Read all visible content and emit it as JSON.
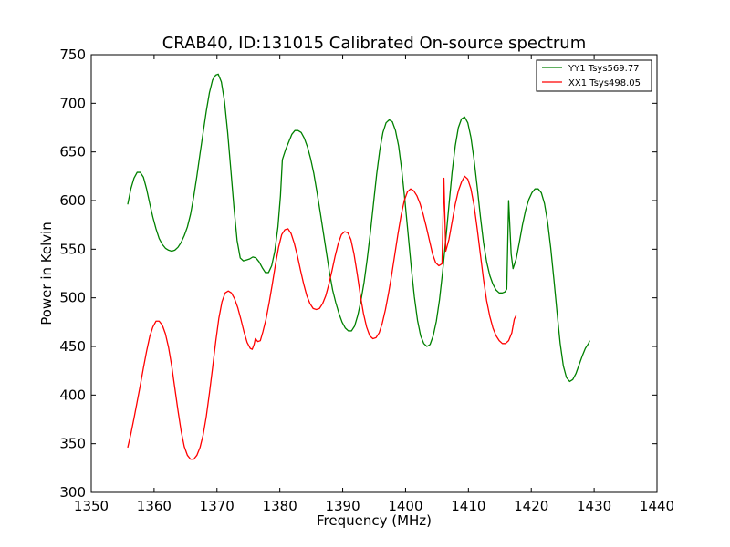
{
  "chart_data": {
    "type": "line",
    "title": "CRAB40, ID:131015 Calibrated On-source spectrum",
    "xlabel": "Frequency (MHz)",
    "ylabel": "Power in Kelvin",
    "xlim": [
      1350,
      1440
    ],
    "ylim": [
      300,
      750
    ],
    "xticks": [
      1350,
      1360,
      1370,
      1380,
      1390,
      1400,
      1410,
      1420,
      1430,
      1440
    ],
    "yticks": [
      300,
      350,
      400,
      450,
      500,
      550,
      600,
      650,
      700,
      750
    ],
    "grid": false,
    "legend_position": "top-right",
    "series": [
      {
        "name": "YY1 Tsys569.77",
        "color": "#008000",
        "points": [
          [
            1355.8,
            596
          ],
          [
            1356.3,
            612
          ],
          [
            1356.8,
            623
          ],
          [
            1357.3,
            629
          ],
          [
            1357.8,
            629
          ],
          [
            1358.3,
            624
          ],
          [
            1358.8,
            612
          ],
          [
            1359.3,
            597
          ],
          [
            1359.8,
            583
          ],
          [
            1360.3,
            571
          ],
          [
            1360.8,
            561
          ],
          [
            1361.3,
            555
          ],
          [
            1361.8,
            551
          ],
          [
            1362.3,
            549
          ],
          [
            1362.8,
            548
          ],
          [
            1363.3,
            549
          ],
          [
            1363.8,
            552
          ],
          [
            1364.3,
            557
          ],
          [
            1364.8,
            564
          ],
          [
            1365.3,
            573
          ],
          [
            1365.8,
            586
          ],
          [
            1366.3,
            604
          ],
          [
            1366.8,
            625
          ],
          [
            1367.3,
            648
          ],
          [
            1367.8,
            670
          ],
          [
            1368.3,
            692
          ],
          [
            1368.8,
            711
          ],
          [
            1369.3,
            724
          ],
          [
            1369.8,
            729
          ],
          [
            1370.2,
            730
          ],
          [
            1370.7,
            722
          ],
          [
            1371.2,
            702
          ],
          [
            1371.7,
            670
          ],
          [
            1372.2,
            632
          ],
          [
            1372.7,
            593
          ],
          [
            1373.2,
            559
          ],
          [
            1373.7,
            541
          ],
          [
            1374.2,
            538
          ],
          [
            1374.7,
            539
          ],
          [
            1375.2,
            540
          ],
          [
            1375.7,
            542
          ],
          [
            1376.2,
            541
          ],
          [
            1376.7,
            537
          ],
          [
            1377.2,
            531
          ],
          [
            1377.7,
            526
          ],
          [
            1378.2,
            526
          ],
          [
            1378.7,
            533
          ],
          [
            1379.2,
            548
          ],
          [
            1379.7,
            573
          ],
          [
            1380.1,
            605
          ],
          [
            1380.4,
            642
          ],
          [
            1380.9,
            652
          ],
          [
            1381.4,
            660
          ],
          [
            1381.9,
            668
          ],
          [
            1382.4,
            672
          ],
          [
            1382.9,
            672
          ],
          [
            1383.4,
            670
          ],
          [
            1383.9,
            664
          ],
          [
            1384.4,
            655
          ],
          [
            1384.9,
            643
          ],
          [
            1385.4,
            628
          ],
          [
            1385.9,
            609
          ],
          [
            1386.4,
            589
          ],
          [
            1386.9,
            568
          ],
          [
            1387.4,
            547
          ],
          [
            1387.9,
            526
          ],
          [
            1388.4,
            508
          ],
          [
            1388.9,
            495
          ],
          [
            1389.4,
            484
          ],
          [
            1389.9,
            475
          ],
          [
            1390.4,
            469
          ],
          [
            1390.9,
            466
          ],
          [
            1391.4,
            466
          ],
          [
            1391.9,
            471
          ],
          [
            1392.4,
            482
          ],
          [
            1392.9,
            497
          ],
          [
            1393.4,
            516
          ],
          [
            1393.9,
            540
          ],
          [
            1394.4,
            567
          ],
          [
            1394.9,
            597
          ],
          [
            1395.4,
            627
          ],
          [
            1395.9,
            652
          ],
          [
            1396.4,
            670
          ],
          [
            1396.9,
            680
          ],
          [
            1397.4,
            683
          ],
          [
            1397.9,
            681
          ],
          [
            1398.4,
            672
          ],
          [
            1398.9,
            656
          ],
          [
            1399.4,
            631
          ],
          [
            1399.9,
            600
          ],
          [
            1400.4,
            566
          ],
          [
            1400.9,
            532
          ],
          [
            1401.4,
            501
          ],
          [
            1401.9,
            477
          ],
          [
            1402.4,
            461
          ],
          [
            1402.9,
            453
          ],
          [
            1403.4,
            450
          ],
          [
            1403.9,
            452
          ],
          [
            1404.4,
            461
          ],
          [
            1404.9,
            476
          ],
          [
            1405.4,
            498
          ],
          [
            1405.9,
            527
          ],
          [
            1406.4,
            560
          ],
          [
            1406.9,
            595
          ],
          [
            1407.4,
            629
          ],
          [
            1407.9,
            656
          ],
          [
            1408.4,
            675
          ],
          [
            1408.9,
            684
          ],
          [
            1409.4,
            686
          ],
          [
            1409.9,
            680
          ],
          [
            1410.4,
            665
          ],
          [
            1410.9,
            642
          ],
          [
            1411.4,
            614
          ],
          [
            1411.9,
            584
          ],
          [
            1412.4,
            557
          ],
          [
            1412.9,
            537
          ],
          [
            1413.4,
            523
          ],
          [
            1413.9,
            514
          ],
          [
            1414.4,
            508
          ],
          [
            1414.9,
            505
          ],
          [
            1415.4,
            505
          ],
          [
            1415.8,
            506
          ],
          [
            1416.1,
            509
          ],
          [
            1416.4,
            600
          ],
          [
            1416.8,
            545
          ],
          [
            1417.1,
            530
          ],
          [
            1417.6,
            540
          ],
          [
            1418.1,
            557
          ],
          [
            1418.6,
            575
          ],
          [
            1419.1,
            590
          ],
          [
            1419.6,
            601
          ],
          [
            1420.1,
            608
          ],
          [
            1420.6,
            612
          ],
          [
            1421.1,
            612
          ],
          [
            1421.6,
            608
          ],
          [
            1422.1,
            597
          ],
          [
            1422.6,
            578
          ],
          [
            1423.1,
            551
          ],
          [
            1423.6,
            519
          ],
          [
            1424.1,
            485
          ],
          [
            1424.6,
            453
          ],
          [
            1425.1,
            430
          ],
          [
            1425.6,
            418
          ],
          [
            1426.1,
            414
          ],
          [
            1426.6,
            416
          ],
          [
            1427.1,
            422
          ],
          [
            1427.6,
            431
          ],
          [
            1428.1,
            440
          ],
          [
            1428.6,
            448
          ],
          [
            1429.1,
            453
          ],
          [
            1429.3,
            456
          ]
        ]
      },
      {
        "name": "XX1 Tsys498.05",
        "color": "#ff0000",
        "points": [
          [
            1355.8,
            346
          ],
          [
            1356.3,
            360
          ],
          [
            1356.8,
            376
          ],
          [
            1357.3,
            393
          ],
          [
            1357.8,
            410
          ],
          [
            1358.3,
            428
          ],
          [
            1358.8,
            445
          ],
          [
            1359.3,
            460
          ],
          [
            1359.8,
            470
          ],
          [
            1360.3,
            476
          ],
          [
            1360.8,
            476
          ],
          [
            1361.3,
            472
          ],
          [
            1361.8,
            463
          ],
          [
            1362.3,
            449
          ],
          [
            1362.8,
            430
          ],
          [
            1363.3,
            407
          ],
          [
            1363.8,
            384
          ],
          [
            1364.3,
            363
          ],
          [
            1364.8,
            347
          ],
          [
            1365.3,
            338
          ],
          [
            1365.8,
            334
          ],
          [
            1366.3,
            334
          ],
          [
            1366.8,
            338
          ],
          [
            1367.3,
            346
          ],
          [
            1367.8,
            359
          ],
          [
            1368.3,
            378
          ],
          [
            1368.8,
            402
          ],
          [
            1369.3,
            428
          ],
          [
            1369.8,
            455
          ],
          [
            1370.3,
            479
          ],
          [
            1370.8,
            496
          ],
          [
            1371.3,
            505
          ],
          [
            1371.8,
            507
          ],
          [
            1372.3,
            505
          ],
          [
            1372.8,
            499
          ],
          [
            1373.3,
            490
          ],
          [
            1373.8,
            478
          ],
          [
            1374.3,
            465
          ],
          [
            1374.8,
            454
          ],
          [
            1375.3,
            448
          ],
          [
            1375.6,
            447
          ],
          [
            1375.9,
            452
          ],
          [
            1376.1,
            458
          ],
          [
            1376.5,
            455
          ],
          [
            1376.9,
            456
          ],
          [
            1377.3,
            465
          ],
          [
            1377.8,
            478
          ],
          [
            1378.3,
            495
          ],
          [
            1378.8,
            514
          ],
          [
            1379.3,
            534
          ],
          [
            1379.8,
            552
          ],
          [
            1380.3,
            565
          ],
          [
            1380.8,
            570
          ],
          [
            1381.3,
            571
          ],
          [
            1381.8,
            566
          ],
          [
            1382.3,
            556
          ],
          [
            1382.8,
            543
          ],
          [
            1383.3,
            528
          ],
          [
            1383.8,
            514
          ],
          [
            1384.3,
            502
          ],
          [
            1384.8,
            494
          ],
          [
            1385.3,
            489
          ],
          [
            1385.8,
            488
          ],
          [
            1386.3,
            489
          ],
          [
            1386.8,
            494
          ],
          [
            1387.3,
            502
          ],
          [
            1387.8,
            514
          ],
          [
            1388.3,
            528
          ],
          [
            1388.8,
            543
          ],
          [
            1389.3,
            556
          ],
          [
            1389.8,
            565
          ],
          [
            1390.3,
            568
          ],
          [
            1390.8,
            567
          ],
          [
            1391.3,
            560
          ],
          [
            1391.8,
            545
          ],
          [
            1392.3,
            525
          ],
          [
            1392.8,
            503
          ],
          [
            1393.3,
            484
          ],
          [
            1393.8,
            470
          ],
          [
            1394.3,
            461
          ],
          [
            1394.8,
            458
          ],
          [
            1395.3,
            459
          ],
          [
            1395.8,
            464
          ],
          [
            1396.3,
            474
          ],
          [
            1396.8,
            488
          ],
          [
            1397.3,
            505
          ],
          [
            1397.8,
            524
          ],
          [
            1398.3,
            545
          ],
          [
            1398.8,
            566
          ],
          [
            1399.3,
            585
          ],
          [
            1399.8,
            600
          ],
          [
            1400.3,
            609
          ],
          [
            1400.8,
            612
          ],
          [
            1401.3,
            610
          ],
          [
            1401.8,
            605
          ],
          [
            1402.3,
            597
          ],
          [
            1402.8,
            586
          ],
          [
            1403.3,
            573
          ],
          [
            1403.8,
            559
          ],
          [
            1404.3,
            545
          ],
          [
            1404.8,
            536
          ],
          [
            1405.3,
            533
          ],
          [
            1405.8,
            535
          ],
          [
            1406.1,
            623
          ],
          [
            1406.4,
            548
          ],
          [
            1406.9,
            560
          ],
          [
            1407.4,
            578
          ],
          [
            1407.9,
            596
          ],
          [
            1408.4,
            610
          ],
          [
            1408.9,
            619
          ],
          [
            1409.4,
            625
          ],
          [
            1409.9,
            622
          ],
          [
            1410.4,
            612
          ],
          [
            1410.9,
            595
          ],
          [
            1411.4,
            571
          ],
          [
            1411.9,
            545
          ],
          [
            1412.4,
            519
          ],
          [
            1412.9,
            497
          ],
          [
            1413.4,
            481
          ],
          [
            1413.9,
            469
          ],
          [
            1414.4,
            461
          ],
          [
            1414.9,
            456
          ],
          [
            1415.4,
            453
          ],
          [
            1415.9,
            453
          ],
          [
            1416.4,
            456
          ],
          [
            1416.9,
            464
          ],
          [
            1417.3,
            478
          ],
          [
            1417.6,
            482
          ]
        ]
      }
    ]
  }
}
